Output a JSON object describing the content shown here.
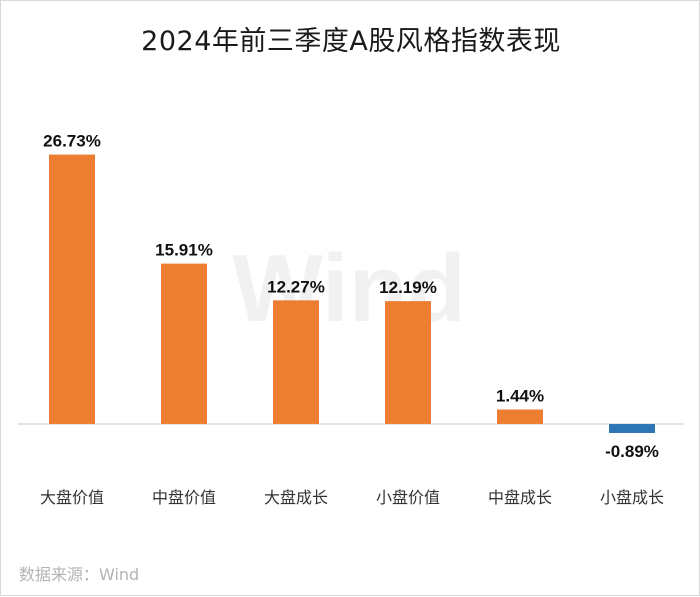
{
  "title": "2024年前三季度A股风格指数表现",
  "watermark": "Wind",
  "source": "数据来源：Wind",
  "colors": {
    "positive": "#ED7D31",
    "negative": "#2E75B6",
    "axis": "#c8c8c8"
  },
  "chart_data": {
    "type": "bar",
    "title": "2024年前三季度A股风格指数表现",
    "categories": [
      "大盘价值",
      "中盘价值",
      "大盘成长",
      "小盘价值",
      "中盘成长",
      "小盘成长"
    ],
    "values": [
      26.73,
      15.91,
      12.27,
      12.19,
      1.44,
      -0.89
    ],
    "data_labels": [
      "26.73%",
      "15.91%",
      "12.27%",
      "12.19%",
      "1.44%",
      "-0.89%"
    ],
    "unit": "%",
    "ylim": [
      -2,
      28
    ],
    "grid": false,
    "legend": "none"
  }
}
